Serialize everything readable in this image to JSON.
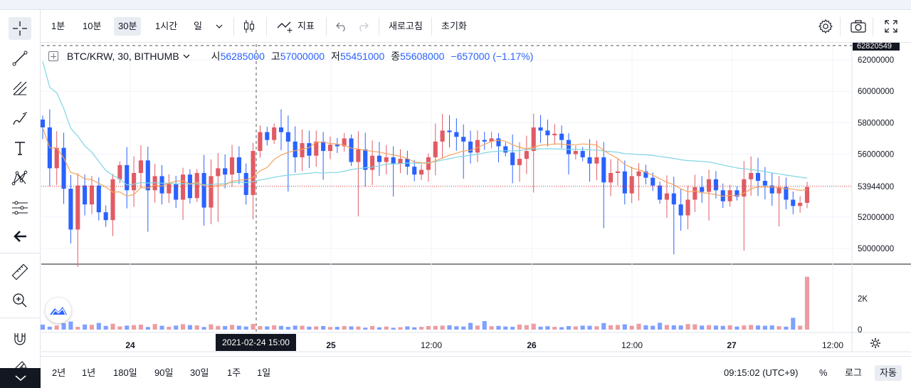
{
  "toolbar": {
    "intervals": [
      "1분",
      "10분",
      "30분",
      "1시간",
      "일"
    ],
    "active_interval": "30분",
    "indicators_label": "지표",
    "refresh_label": "새로고침",
    "reset_label": "초기화"
  },
  "legend": {
    "symbol": "BTC/KRW, 30, BITHUMB",
    "open_label": "시",
    "open": "56285000",
    "high_label": "고",
    "high": "57000000",
    "low_label": "저",
    "low": "55451000",
    "close_label": "종",
    "close": "55608000",
    "change": "−657000 (−1.17%)"
  },
  "price_axis": {
    "ticks": [
      "62000000",
      "60000000",
      "58000000",
      "56000000",
      "54000000",
      "52000000",
      "50000000"
    ],
    "last_price_label": "53944000",
    "top_price_label": "62820549"
  },
  "volume_axis": {
    "ticks": [
      "2K",
      "0"
    ]
  },
  "time_axis": {
    "labels": [
      "24",
      "25",
      "12:00",
      "26",
      "12:00",
      "27",
      "12:00"
    ],
    "cursor_label": "2021-02-24   15:00"
  },
  "bottom_bar": {
    "ranges": [
      "2년",
      "1년",
      "180일",
      "90일",
      "30일",
      "1주",
      "1일"
    ],
    "clock": "09:15:02 (UTC+9)",
    "percent_label": "%",
    "log_label": "로그",
    "auto_label": "자동"
  },
  "colors": {
    "up": "#e15b64",
    "down": "#2962ff",
    "ma_fast": "#f7a35c",
    "ma_slow": "#7fd6e3",
    "last_price_line": "#e53935",
    "crosshair": "#555555"
  },
  "chart_data": {
    "type": "candlestick",
    "title": "BTC/KRW, 30, BITHUMB",
    "interval_minutes": 30,
    "ylim": [
      49000000,
      63000000
    ],
    "volume_ylim": [
      0,
      3800
    ],
    "grid": true,
    "last_price": 53944000,
    "closes": [
      57700000,
      55100000,
      56400000,
      53800000,
      51200000,
      54000000,
      52800000,
      54000000,
      52300000,
      51800000,
      54400000,
      55300000,
      53700000,
      54800000,
      55600000,
      53700000,
      54600000,
      53500000,
      54100000,
      53100000,
      54700000,
      53200000,
      54800000,
      52600000,
      54600000,
      55100000,
      54700000,
      55800000,
      54800000,
      53400000,
      56200000,
      57400000,
      56900000,
      57700000,
      57400000,
      56800000,
      55800000,
      56700000,
      55900000,
      56800000,
      56200000,
      56600000,
      56500000,
      57000000,
      55500000,
      56300000,
      55000000,
      55900000,
      55500000,
      55800000,
      55400000,
      55700000,
      55200000,
      54700000,
      55000000,
      55800000,
      56800000,
      57500000,
      57400000,
      57100000,
      56800000,
      56100000,
      56900000,
      56800000,
      57000000,
      56500000,
      56100000,
      55300000,
      55700000,
      56200000,
      57700000,
      57500000,
      57200000,
      57300000,
      56900000,
      56000000,
      56200000,
      55800000,
      55400000,
      55800000,
      54200000,
      54800000,
      54900000,
      53500000,
      54600000,
      54900000,
      54500000,
      54000000,
      53100000,
      53500000,
      52800000,
      52100000,
      53100000,
      53900000,
      53600000,
      54400000,
      53700000,
      53000000,
      53700000,
      53300000,
      54400000,
      54800000,
      54300000,
      54000000,
      53500000,
      53900000,
      53100000,
      52700000,
      52900000,
      53900000
    ],
    "volume": [
      320,
      190,
      260,
      410,
      520,
      180,
      330,
      310,
      430,
      240,
      380,
      210,
      260,
      290,
      320,
      170,
      360,
      250,
      180,
      260,
      350,
      290,
      270,
      170,
      340,
      240,
      230,
      310,
      250,
      200,
      370,
      230,
      210,
      280,
      240,
      180,
      260,
      250,
      190,
      210,
      230,
      170,
      180,
      230,
      210,
      200,
      130,
      230,
      150,
      200,
      120,
      160,
      210,
      150,
      180,
      230,
      240,
      260,
      280,
      220,
      200,
      430,
      260,
      550,
      220,
      240,
      200,
      180,
      330,
      290,
      380,
      190,
      220,
      180,
      160,
      230,
      210,
      260,
      250,
      220,
      420,
      280,
      300,
      340,
      250,
      380,
      280,
      250,
      440,
      300,
      280,
      270,
      360,
      340,
      260,
      290,
      260,
      240,
      280,
      200,
      270,
      300,
      270,
      250,
      270,
      220,
      190,
      760,
      250,
      3400
    ]
  }
}
